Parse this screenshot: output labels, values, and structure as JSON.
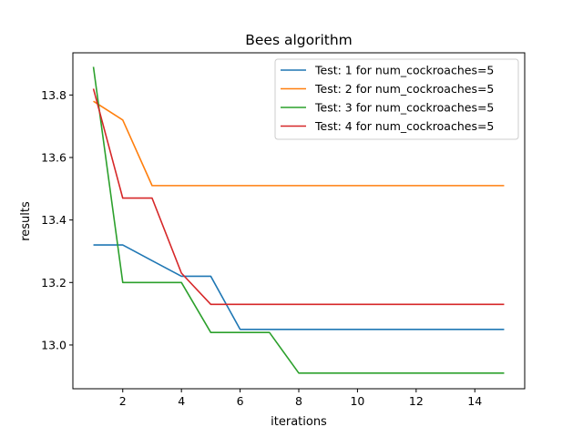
{
  "chart_data": {
    "type": "line",
    "title": "Bees algorithm",
    "xlabel": "iterations",
    "ylabel": "results",
    "xlim": [
      0.3,
      15.7
    ],
    "ylim": [
      12.86,
      13.935
    ],
    "xticks": [
      2,
      4,
      6,
      8,
      10,
      12,
      14
    ],
    "yticks": [
      13.0,
      13.2,
      13.4,
      13.6,
      13.8
    ],
    "ytick_labels": [
      "13.0",
      "13.2",
      "13.4",
      "13.6",
      "13.8"
    ],
    "grid": false,
    "legend_position": "top-right",
    "x": [
      1,
      2,
      3,
      4,
      5,
      6,
      7,
      8,
      9,
      10,
      11,
      12,
      13,
      14,
      15
    ],
    "series": [
      {
        "name": "Test: 1 for num_cockroaches=5",
        "color": "#1f77b4",
        "values": [
          13.32,
          13.32,
          13.27,
          13.22,
          13.22,
          13.05,
          13.05,
          13.05,
          13.05,
          13.05,
          13.05,
          13.05,
          13.05,
          13.05,
          13.05
        ]
      },
      {
        "name": "Test: 2 for num_cockroaches=5",
        "color": "#ff7f0e",
        "values": [
          13.78,
          13.72,
          13.51,
          13.51,
          13.51,
          13.51,
          13.51,
          13.51,
          13.51,
          13.51,
          13.51,
          13.51,
          13.51,
          13.51,
          13.51
        ]
      },
      {
        "name": "Test: 3 for num_cockroaches=5",
        "color": "#2ca02c",
        "values": [
          13.89,
          13.2,
          13.2,
          13.2,
          13.04,
          13.04,
          13.04,
          12.91,
          12.91,
          12.91,
          12.91,
          12.91,
          12.91,
          12.91,
          12.91
        ]
      },
      {
        "name": "Test: 4 for num_cockroaches=5",
        "color": "#d62728",
        "values": [
          13.82,
          13.47,
          13.47,
          13.23,
          13.13,
          13.13,
          13.13,
          13.13,
          13.13,
          13.13,
          13.13,
          13.13,
          13.13,
          13.13,
          13.13
        ]
      }
    ]
  }
}
